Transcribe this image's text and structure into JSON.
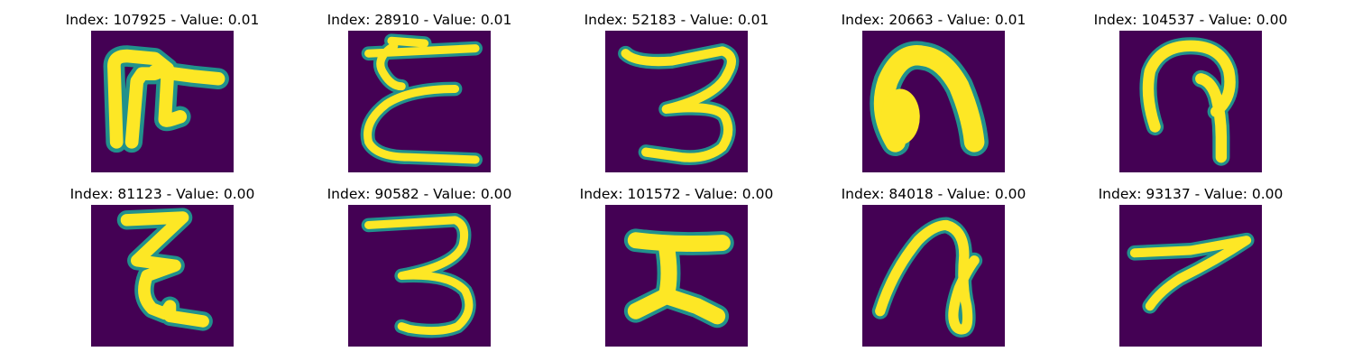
{
  "colors": {
    "background": "#440154",
    "stroke": "#fde725",
    "stroke_edge": "#21918c"
  },
  "panels": [
    {
      "title": "Index: 107925 - Value: 0.01",
      "glyph": "glyph-107925"
    },
    {
      "title": "Index: 28910 - Value: 0.01",
      "glyph": "glyph-28910"
    },
    {
      "title": "Index: 52183 - Value: 0.01",
      "glyph": "glyph-52183"
    },
    {
      "title": "Index: 20663 - Value: 0.01",
      "glyph": "glyph-20663"
    },
    {
      "title": "Index: 104537 - Value: 0.00",
      "glyph": "glyph-104537"
    },
    {
      "title": "Index: 81123 - Value: 0.00",
      "glyph": "glyph-81123"
    },
    {
      "title": "Index: 90582 - Value: 0.00",
      "glyph": "glyph-90582"
    },
    {
      "title": "Index: 101572 - Value: 0.00",
      "glyph": "glyph-101572"
    },
    {
      "title": "Index: 84018 - Value: 0.00",
      "glyph": "glyph-84018"
    },
    {
      "title": "Index: 93137 - Value: 0.00",
      "glyph": "glyph-93137"
    }
  ]
}
